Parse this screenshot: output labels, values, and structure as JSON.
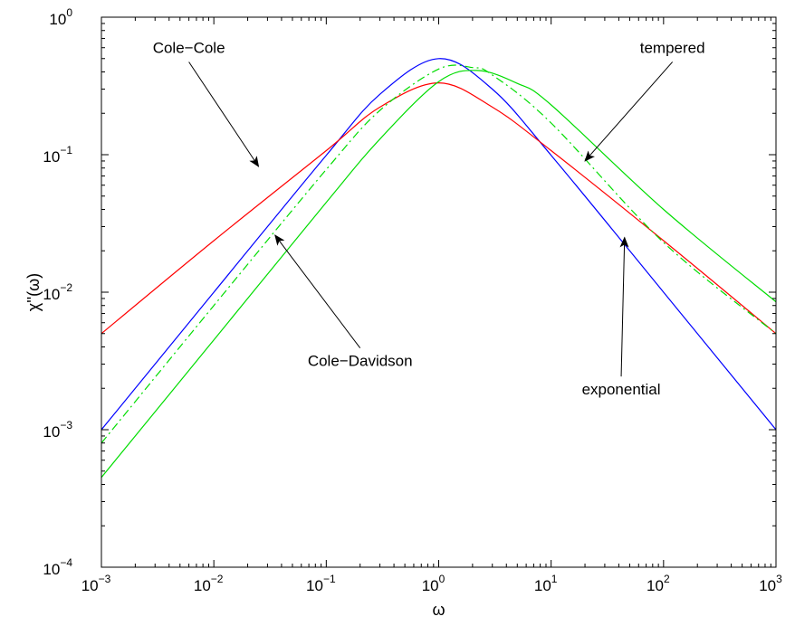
{
  "chart_data": {
    "type": "line",
    "xlabel": "ω",
    "ylabel": "χ''(ω)",
    "x_scale": "log",
    "y_scale": "log",
    "xlim": [
      0.001,
      1000
    ],
    "ylim": [
      0.0001,
      1
    ],
    "grid": false,
    "x_ticks": [
      {
        "base": "10",
        "exp": "−3"
      },
      {
        "base": "10",
        "exp": "−2"
      },
      {
        "base": "10",
        "exp": "−1"
      },
      {
        "base": "10",
        "exp": "0"
      },
      {
        "base": "10",
        "exp": "1"
      },
      {
        "base": "10",
        "exp": "2"
      },
      {
        "base": "10",
        "exp": "3"
      }
    ],
    "y_ticks": [
      {
        "base": "10",
        "exp": "−4"
      },
      {
        "base": "10",
        "exp": "−3"
      },
      {
        "base": "10",
        "exp": "−2"
      },
      {
        "base": "10",
        "exp": "−1"
      },
      {
        "base": "10",
        "exp": "0"
      }
    ],
    "series": [
      {
        "key": "exponential",
        "color": "#0000ff",
        "style": "solid",
        "x": [
          0.001,
          0.01,
          0.1,
          0.3,
          1,
          3,
          10,
          100,
          1000
        ],
        "y": [
          0.001,
          0.01,
          0.099,
          0.275,
          0.5,
          0.3,
          0.099,
          0.01,
          0.001
        ]
      },
      {
        "key": "cole-cole",
        "color": "#ff0000",
        "style": "solid",
        "x": [
          0.001,
          0.01,
          0.1,
          0.3,
          1,
          3,
          10,
          100,
          1000
        ],
        "y": [
          0.005,
          0.0237,
          0.107,
          0.222,
          0.333,
          0.222,
          0.107,
          0.0237,
          0.005
        ]
      },
      {
        "key": "cole-davidson",
        "color": "#00dd00",
        "style": "dashdot",
        "x": [
          0.001,
          0.01,
          0.1,
          0.3,
          1,
          2,
          3,
          10,
          100,
          1000
        ],
        "y": [
          0.0008,
          0.008,
          0.078,
          0.21,
          0.42,
          0.43,
          0.38,
          0.17,
          0.023,
          0.005
        ]
      },
      {
        "key": "tempered",
        "color": "#00dd00",
        "style": "solid",
        "x": [
          0.001,
          0.01,
          0.1,
          0.3,
          1,
          2.2,
          5,
          10,
          100,
          1000
        ],
        "y": [
          0.00045,
          0.0045,
          0.045,
          0.13,
          0.34,
          0.41,
          0.33,
          0.23,
          0.04,
          0.0085
        ]
      }
    ],
    "annotations": [
      {
        "text": "Cole−Cole",
        "tx": 0.006,
        "ty": 0.55,
        "ax": 0.025,
        "ay": 0.082
      },
      {
        "text": "tempered",
        "tx": 120,
        "ty": 0.55,
        "ax": 20,
        "ay": 0.09
      },
      {
        "text": "Cole−Davidson",
        "tx": 0.2,
        "ty": 0.0029,
        "ax": 0.035,
        "ay": 0.026
      },
      {
        "text": "exponential",
        "tx": 42,
        "ty": 0.0018,
        "ax": 45,
        "ay": 0.025
      }
    ]
  }
}
